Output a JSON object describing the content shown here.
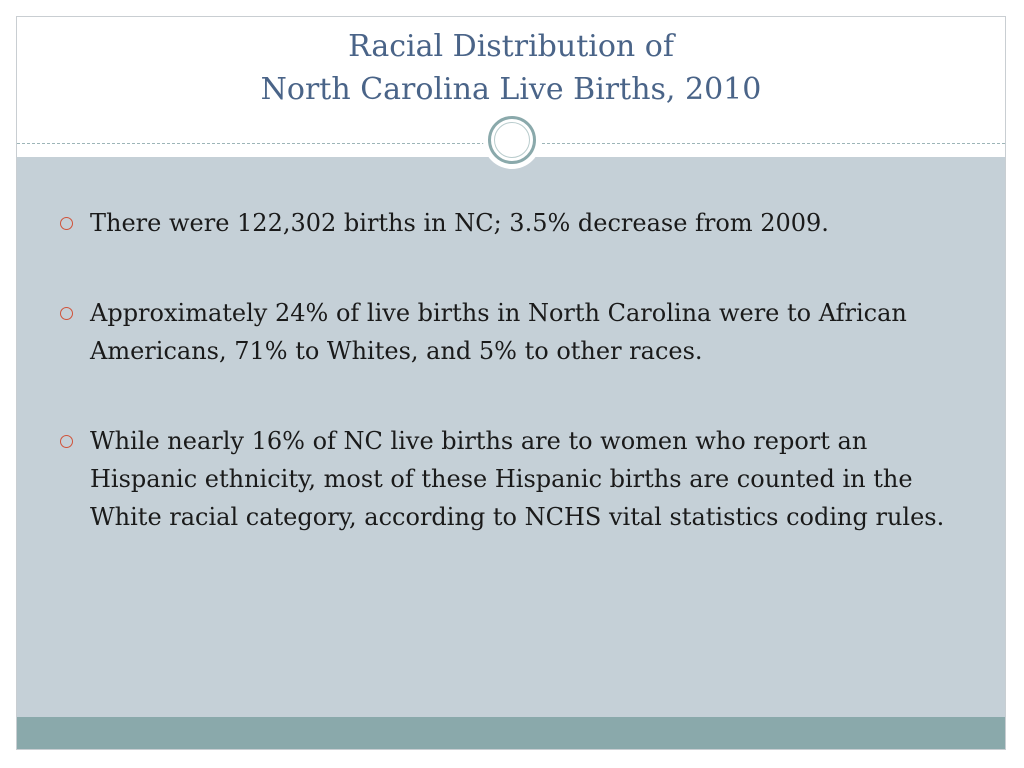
{
  "slide": {
    "title_lines": [
      "Racial Distribution of",
      "North Carolina Live Births, 2010"
    ],
    "bullets": [
      "There were 122,302 births in NC; 3.5% decrease from 2009.",
      "Approximately 24% of live births in North Carolina were to African Americans, 71% to Whites, and 5% to other races.",
      "While nearly 16% of NC live births are to women who report an Hispanic ethnicity, most of these Hispanic births are counted in the White racial category, according to NCHS vital statistics coding rules."
    ],
    "bullet_icon": "hollow-circle-bullet-icon"
  },
  "colors": {
    "title": "#4a6488",
    "content_background": "#c5d0d7",
    "footer_bar": "#8aa9ab",
    "bullet_marker": "#d0533a",
    "body_text": "#1a1a1a"
  }
}
